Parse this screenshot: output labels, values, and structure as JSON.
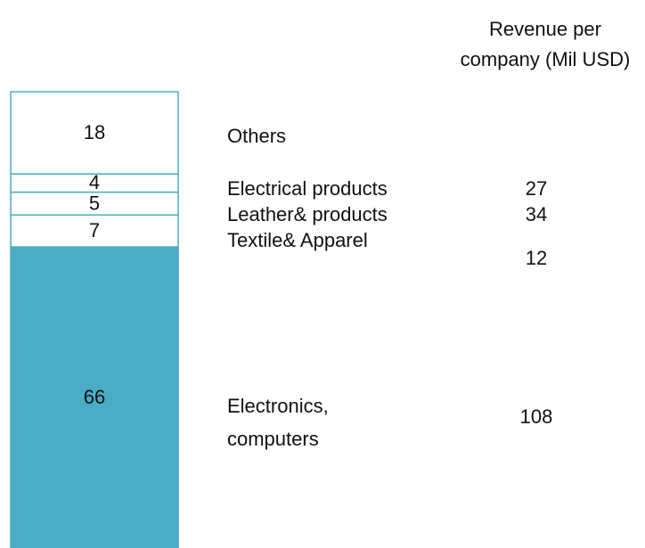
{
  "chart_data": {
    "type": "stacked-bar",
    "categories": [
      "Electronics, computers",
      "Textile& Apparel",
      "Leather& products",
      "Electrical products",
      "Others"
    ],
    "values": [
      66,
      7,
      5,
      4,
      18
    ],
    "colors": [
      "#4bacc6",
      "#ffffff",
      "#ffffff",
      "#ffffff",
      "#ffffff"
    ],
    "stroke": "#4bacc6",
    "revenue": {
      "name": "Revenue per company (Mil USD)",
      "values": [
        108,
        12,
        34,
        27,
        null
      ]
    }
  }
}
